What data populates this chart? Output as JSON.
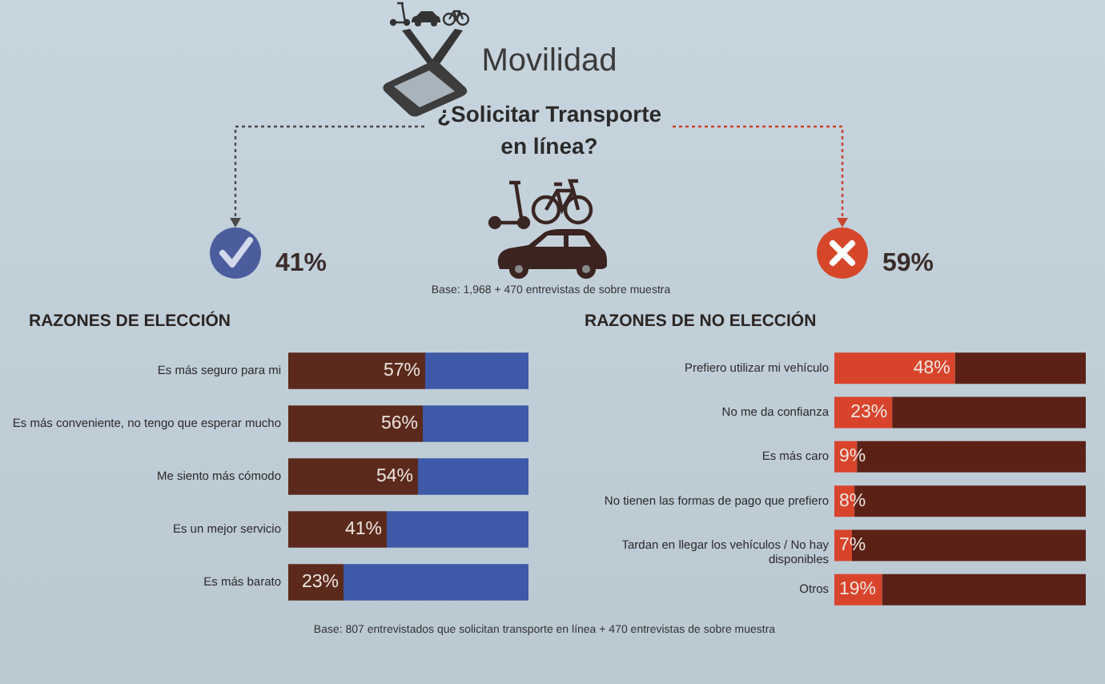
{
  "chart_data": [
    {
      "type": "other",
      "title": "Movilidad",
      "subtitle": "¿Solicitar Transporte en línea?",
      "annotations": [
        "41%",
        "59%",
        "Base: 1,968 + 470 entrevistas de sobre muestra"
      ]
    },
    {
      "type": "bar",
      "title": "RAZONES DE ELECCIÓN",
      "orientation": "horizontal",
      "stacked": true,
      "categories": [
        "Es más seguro para mi",
        "Es más conveniente, no tengo que esperar mucho",
        "Me siento más cómodo",
        "Es un mejor servicio",
        "Es más barato"
      ],
      "series": [
        {
          "color": "#5b2a1d",
          "values": [
            57,
            56,
            54,
            41,
            23
          ],
          "value_labels": [
            "57%",
            "56%",
            "54%",
            "41%",
            "23%"
          ]
        },
        {
          "color": "#3e59a7",
          "values": [
            43,
            44,
            46,
            59,
            77
          ]
        }
      ],
      "xlim": [
        0,
        100
      ],
      "tick_labels": "y",
      "annotations": [
        "Base: 807 entrevistados que solicitan transporte en línea + 470 entrevistas de sobre muestra"
      ]
    },
    {
      "type": "bar",
      "title": "RAZONES DE NO ELECCIÓN",
      "orientation": "horizontal",
      "stacked": true,
      "categories": [
        "Prefiero utilizar mi vehículo",
        "No me da confianza",
        "Es más caro",
        "No tienen las formas de pago que prefiero",
        "Tardan en llegar los vehículos / No hay disponibles",
        "Otros"
      ],
      "series": [
        {
          "color": "#d8442b",
          "values": [
            48,
            23,
            9,
            8,
            7,
            19
          ],
          "value_labels": [
            "48%",
            "23%",
            "9%",
            "8%",
            "7%",
            "19%"
          ]
        },
        {
          "color": "#5b2117",
          "values": [
            52,
            77,
            91,
            92,
            93,
            81
          ]
        }
      ],
      "xlim": [
        0,
        100
      ],
      "tick_labels": "y"
    }
  ]
}
